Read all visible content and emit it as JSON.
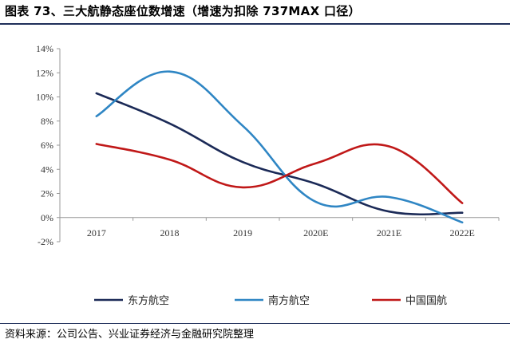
{
  "title": "图表 73、三大航静态座位数增速（增速为扣除 737MAX 口径）",
  "source": "资料来源：公司公告、兴业证券经济与金融研究院整理",
  "chart_data": {
    "type": "line",
    "categories": [
      "2017",
      "2018",
      "2019",
      "2020E",
      "2021E",
      "2022E"
    ],
    "ylim": [
      -2,
      14
    ],
    "yticks": [
      "14%",
      "12%",
      "10%",
      "8%",
      "6%",
      "4%",
      "2%",
      "0%",
      "-2%"
    ],
    "ytick_values": [
      14,
      12,
      10,
      8,
      6,
      4,
      2,
      0,
      -2
    ],
    "legend_position": "bottom",
    "grid": false,
    "series": [
      {
        "name": "东方航空",
        "color": "#1b2a57",
        "values": [
          10.3,
          7.8,
          4.6,
          2.8,
          0.5,
          0.4
        ]
      },
      {
        "name": "南方航空",
        "color": "#2f86c4",
        "values": [
          8.4,
          12.1,
          7.6,
          1.3,
          1.7,
          -0.4
        ]
      },
      {
        "name": "中国国航",
        "color": "#c01818",
        "values": [
          6.1,
          4.8,
          2.5,
          4.5,
          5.9,
          1.2
        ]
      }
    ]
  }
}
